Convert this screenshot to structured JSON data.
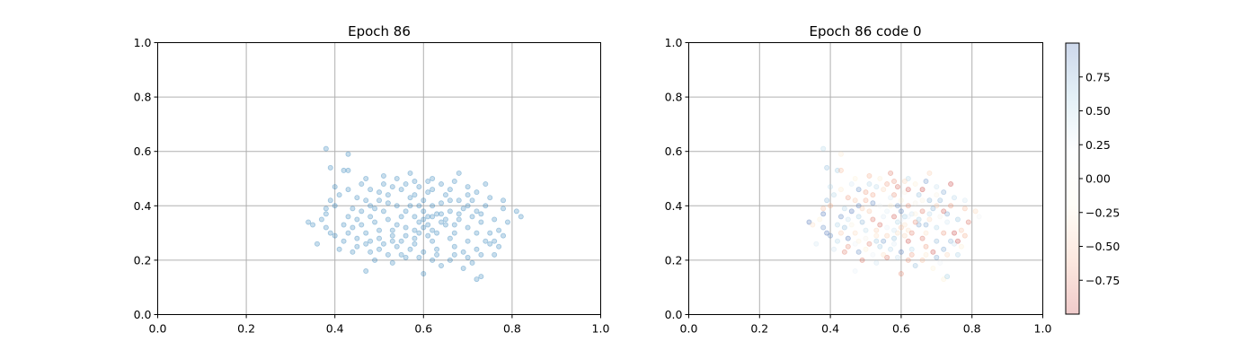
{
  "chart_data": [
    {
      "type": "scatter",
      "title": "Epoch 86",
      "xlim": [
        0,
        1
      ],
      "ylim": [
        0,
        1
      ],
      "xticks": [
        "0.0",
        "0.2",
        "0.4",
        "0.6",
        "0.8",
        "1.0"
      ],
      "yticks": [
        "0.0",
        "0.2",
        "0.4",
        "0.6",
        "0.8",
        "1.0"
      ],
      "grid": true,
      "point_color": "#1f77b4",
      "point_alpha": 0.25,
      "points_note": "approx. 500 points clustered around x≈0.6, y≈0.34 (x 0.34–0.81, y 0.13–0.61)",
      "points": [
        [
          0.38,
          0.61
        ],
        [
          0.43,
          0.59
        ],
        [
          0.39,
          0.54
        ],
        [
          0.42,
          0.53
        ],
        [
          0.43,
          0.53
        ],
        [
          0.34,
          0.34
        ],
        [
          0.35,
          0.33
        ],
        [
          0.36,
          0.26
        ],
        [
          0.47,
          0.16
        ],
        [
          0.6,
          0.15
        ],
        [
          0.72,
          0.13
        ],
        [
          0.73,
          0.14
        ],
        [
          0.81,
          0.38
        ],
        [
          0.82,
          0.36
        ],
        [
          0.78,
          0.42
        ],
        [
          0.76,
          0.22
        ],
        [
          0.77,
          0.25
        ],
        [
          0.74,
          0.48
        ],
        [
          0.68,
          0.52
        ],
        [
          0.62,
          0.5
        ],
        [
          0.57,
          0.52
        ],
        [
          0.51,
          0.51
        ],
        [
          0.47,
          0.5
        ],
        [
          0.46,
          0.48
        ],
        [
          0.4,
          0.47
        ],
        [
          0.38,
          0.37
        ],
        [
          0.39,
          0.3
        ],
        [
          0.41,
          0.24
        ],
        [
          0.44,
          0.23
        ],
        [
          0.49,
          0.2
        ],
        [
          0.53,
          0.19
        ],
        [
          0.56,
          0.21
        ],
        [
          0.64,
          0.18
        ],
        [
          0.66,
          0.2
        ],
        [
          0.69,
          0.17
        ],
        [
          0.71,
          0.19
        ],
        [
          0.75,
          0.3
        ],
        [
          0.76,
          0.35
        ],
        [
          0.74,
          0.4
        ],
        [
          0.7,
          0.44
        ],
        [
          0.66,
          0.46
        ],
        [
          0.61,
          0.45
        ],
        [
          0.58,
          0.44
        ],
        [
          0.55,
          0.46
        ],
        [
          0.52,
          0.44
        ],
        [
          0.5,
          0.42
        ],
        [
          0.48,
          0.4
        ],
        [
          0.46,
          0.38
        ],
        [
          0.45,
          0.35
        ],
        [
          0.44,
          0.32
        ],
        [
          0.47,
          0.3
        ],
        [
          0.5,
          0.28
        ],
        [
          0.53,
          0.27
        ],
        [
          0.56,
          0.29
        ],
        [
          0.59,
          0.3
        ],
        [
          0.62,
          0.31
        ],
        [
          0.65,
          0.33
        ],
        [
          0.68,
          0.35
        ],
        [
          0.71,
          0.36
        ],
        [
          0.73,
          0.34
        ],
        [
          0.72,
          0.3
        ],
        [
          0.7,
          0.27
        ],
        [
          0.67,
          0.25
        ],
        [
          0.63,
          0.24
        ],
        [
          0.6,
          0.23
        ],
        [
          0.57,
          0.24
        ],
        [
          0.54,
          0.25
        ],
        [
          0.51,
          0.26
        ],
        [
          0.48,
          0.27
        ],
        [
          0.45,
          0.28
        ],
        [
          0.43,
          0.3
        ],
        [
          0.42,
          0.33
        ],
        [
          0.43,
          0.36
        ],
        [
          0.44,
          0.39
        ],
        [
          0.47,
          0.42
        ],
        [
          0.5,
          0.45
        ],
        [
          0.53,
          0.47
        ],
        [
          0.56,
          0.48
        ],
        [
          0.59,
          0.47
        ],
        [
          0.62,
          0.46
        ],
        [
          0.65,
          0.44
        ],
        [
          0.68,
          0.42
        ],
        [
          0.7,
          0.4
        ],
        [
          0.72,
          0.38
        ],
        [
          0.6,
          0.38
        ],
        [
          0.61,
          0.36
        ],
        [
          0.59,
          0.34
        ],
        [
          0.6,
          0.32
        ],
        [
          0.58,
          0.36
        ],
        [
          0.62,
          0.4
        ],
        [
          0.57,
          0.4
        ],
        [
          0.63,
          0.37
        ],
        [
          0.55,
          0.36
        ],
        [
          0.64,
          0.34
        ],
        [
          0.56,
          0.32
        ],
        [
          0.61,
          0.29
        ],
        [
          0.58,
          0.28
        ],
        [
          0.66,
          0.38
        ],
        [
          0.54,
          0.4
        ],
        [
          0.6,
          0.42
        ],
        [
          0.52,
          0.35
        ],
        [
          0.67,
          0.3
        ],
        [
          0.49,
          0.34
        ],
        [
          0.69,
          0.39
        ],
        [
          0.53,
          0.31
        ],
        [
          0.62,
          0.27
        ],
        [
          0.57,
          0.43
        ],
        [
          0.64,
          0.41
        ],
        [
          0.51,
          0.38
        ],
        [
          0.66,
          0.28
        ],
        [
          0.48,
          0.36
        ],
        [
          0.7,
          0.32
        ],
        [
          0.55,
          0.27
        ],
        [
          0.59,
          0.4
        ],
        [
          0.61,
          0.33
        ],
        [
          0.63,
          0.3
        ],
        [
          0.58,
          0.31
        ],
        [
          0.6,
          0.35
        ],
        [
          0.62,
          0.36
        ],
        [
          0.56,
          0.38
        ],
        [
          0.64,
          0.37
        ],
        [
          0.54,
          0.33
        ],
        [
          0.65,
          0.35
        ],
        [
          0.53,
          0.29
        ],
        [
          0.67,
          0.33
        ],
        [
          0.5,
          0.31
        ],
        [
          0.68,
          0.37
        ],
        [
          0.52,
          0.41
        ],
        [
          0.66,
          0.42
        ],
        [
          0.49,
          0.39
        ],
        [
          0.71,
          0.42
        ],
        [
          0.46,
          0.33
        ],
        [
          0.73,
          0.37
        ],
        [
          0.47,
          0.26
        ],
        [
          0.74,
          0.27
        ],
        [
          0.5,
          0.24
        ],
        [
          0.58,
          0.26
        ],
        [
          0.63,
          0.22
        ],
        [
          0.69,
          0.23
        ],
        [
          0.72,
          0.24
        ],
        [
          0.75,
          0.26
        ],
        [
          0.77,
          0.31
        ],
        [
          0.4,
          0.4
        ],
        [
          0.41,
          0.44
        ],
        [
          0.43,
          0.46
        ],
        [
          0.45,
          0.43
        ],
        [
          0.48,
          0.46
        ],
        [
          0.51,
          0.48
        ],
        [
          0.54,
          0.5
        ],
        [
          0.58,
          0.49
        ],
        [
          0.61,
          0.49
        ],
        [
          0.64,
          0.48
        ],
        [
          0.67,
          0.49
        ],
        [
          0.7,
          0.47
        ],
        [
          0.72,
          0.45
        ],
        [
          0.75,
          0.43
        ],
        [
          0.78,
          0.39
        ],
        [
          0.79,
          0.34
        ],
        [
          0.78,
          0.29
        ],
        [
          0.76,
          0.27
        ],
        [
          0.73,
          0.22
        ],
        [
          0.7,
          0.21
        ],
        [
          0.67,
          0.22
        ],
        [
          0.62,
          0.2
        ],
        [
          0.59,
          0.21
        ],
        [
          0.55,
          0.22
        ],
        [
          0.52,
          0.22
        ],
        [
          0.48,
          0.23
        ],
        [
          0.45,
          0.25
        ],
        [
          0.42,
          0.27
        ],
        [
          0.4,
          0.29
        ],
        [
          0.38,
          0.32
        ],
        [
          0.37,
          0.35
        ],
        [
          0.38,
          0.39
        ],
        [
          0.39,
          0.42
        ]
      ]
    },
    {
      "type": "scatter",
      "title": "Epoch 86 code 0",
      "xlim": [
        0,
        1
      ],
      "ylim": [
        0,
        1
      ],
      "xticks": [
        "0.0",
        "0.2",
        "0.4",
        "0.6",
        "0.8",
        "1.0"
      ],
      "yticks": [
        "0.0",
        "0.2",
        "0.4",
        "0.6",
        "0.8",
        "1.0"
      ],
      "grid": true,
      "point_alpha": 0.25,
      "colormap": "diverging red-white-blue",
      "colorbar": {
        "range": [
          -1,
          1
        ],
        "ticks": [
          "0.75",
          "0.50",
          "0.25",
          "0.00",
          "−0.25",
          "−0.50",
          "−0.75"
        ],
        "tick_values": [
          0.75,
          0.5,
          0.25,
          0.0,
          -0.25,
          -0.5,
          -0.75
        ],
        "colors": [
          "#c2302e",
          "#f4a582",
          "#fdf6e0",
          "#f7fbff",
          "#92c5de",
          "#3a64b0"
        ]
      }
    }
  ]
}
